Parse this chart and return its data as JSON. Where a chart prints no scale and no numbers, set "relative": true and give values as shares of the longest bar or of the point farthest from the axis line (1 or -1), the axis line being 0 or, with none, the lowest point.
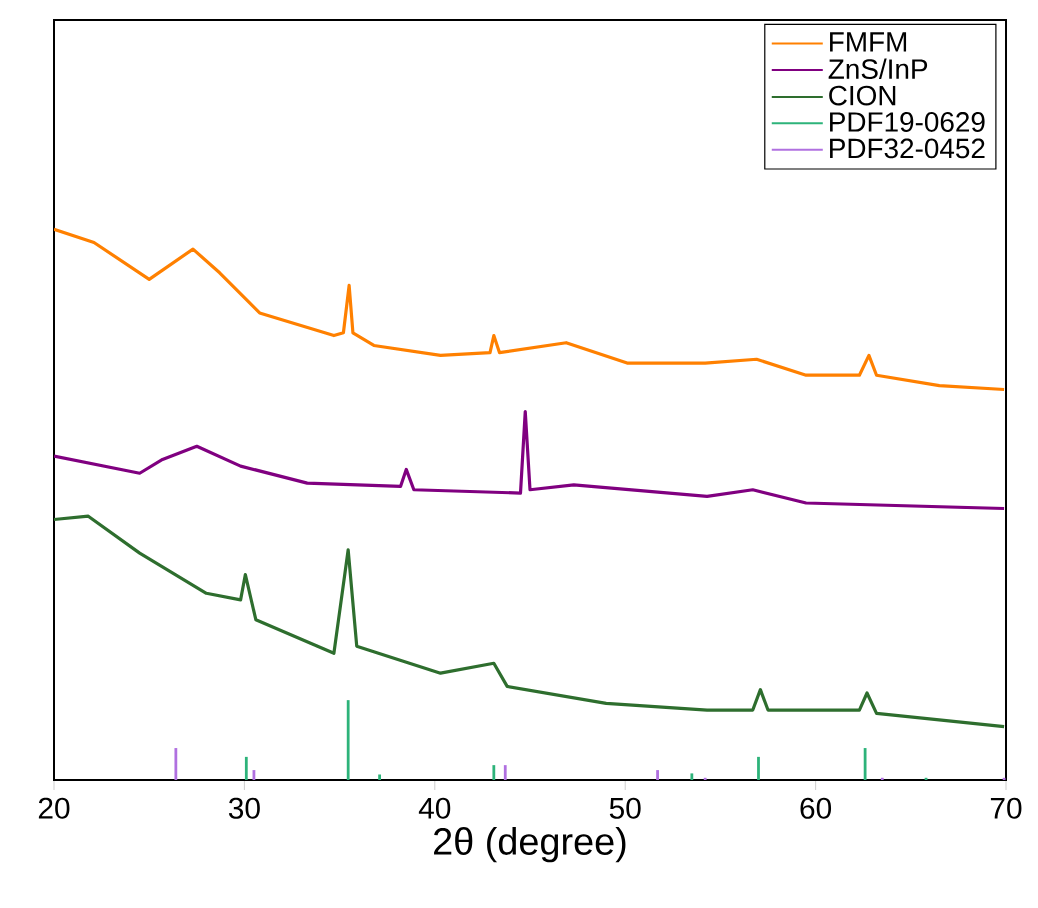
{
  "chart_data": {
    "type": "line",
    "xlabel": "2θ (degree)",
    "relative": true,
    "xlim": [
      20,
      70
    ],
    "xticks": [
      20,
      30,
      40,
      50,
      60,
      70
    ],
    "legend": "top right",
    "grid": false,
    "series": [
      {
        "name": "FMFM",
        "color": "#ff8000",
        "x": [
          20,
          22.1,
          25.0,
          27.3,
          28.7,
          30.8,
          34.7,
          35.2,
          35.5,
          35.7,
          36.8,
          40.3,
          42.9,
          43.1,
          43.4,
          46.9,
          50.1,
          54.2,
          56.9,
          59.5,
          62.3,
          62.8,
          63.2,
          66.5,
          69.9
        ],
        "values": [
          1.0,
          0.976,
          0.909,
          0.964,
          0.921,
          0.848,
          0.807,
          0.812,
          0.898,
          0.812,
          0.789,
          0.771,
          0.776,
          0.807,
          0.776,
          0.794,
          0.757,
          0.757,
          0.764,
          0.735,
          0.735,
          0.771,
          0.735,
          0.716,
          0.709
        ]
      },
      {
        "name": "ZnS/InP",
        "color": "#800080",
        "x": [
          20,
          24.5,
          25.7,
          27.5,
          29.8,
          33.3,
          38.2,
          38.5,
          38.9,
          44.5,
          44.75,
          45.0,
          47.3,
          54.3,
          56.7,
          59.5,
          69.9
        ],
        "values": [
          0.588,
          0.557,
          0.582,
          0.606,
          0.57,
          0.539,
          0.533,
          0.564,
          0.527,
          0.521,
          0.669,
          0.527,
          0.536,
          0.515,
          0.527,
          0.503,
          0.493
        ]
      },
      {
        "name": "CION",
        "color": "#2e6e2e",
        "x": [
          20,
          21.8,
          24.5,
          28.0,
          29.8,
          30.05,
          30.6,
          34.7,
          35.45,
          35.9,
          40.3,
          43.1,
          43.8,
          49.0,
          54.3,
          56.7,
          57.1,
          57.5,
          62.3,
          62.7,
          63.2,
          69.9
        ],
        "values": [
          0.473,
          0.479,
          0.412,
          0.339,
          0.327,
          0.373,
          0.291,
          0.23,
          0.418,
          0.243,
          0.194,
          0.212,
          0.17,
          0.139,
          0.127,
          0.127,
          0.164,
          0.127,
          0.127,
          0.158,
          0.121,
          0.097
        ]
      },
      {
        "name": "PDF19-0629",
        "type": "bar",
        "color": "#2db37a",
        "x": [
          30.1,
          35.45,
          37.1,
          43.1,
          53.5,
          57.0,
          62.6,
          65.8
        ],
        "values": [
          0.042,
          0.145,
          0.01,
          0.027,
          0.012,
          0.042,
          0.058,
          0.004
        ]
      },
      {
        "name": "PDF32-0452",
        "type": "bar",
        "color": "#b070e0",
        "x": [
          26.4,
          30.5,
          43.7,
          51.7,
          54.2,
          63.5,
          69.9
        ],
        "values": [
          0.058,
          0.018,
          0.027,
          0.018,
          0.004,
          0.004,
          0.004
        ]
      }
    ]
  }
}
